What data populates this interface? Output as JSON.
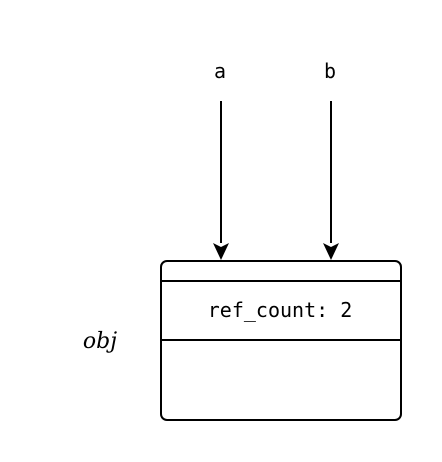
{
  "references": [
    {
      "name": "a"
    },
    {
      "name": "b"
    }
  ],
  "object": {
    "label": "obj",
    "field": "ref_count: 2"
  },
  "colors": {
    "line": "#000000",
    "background": "#ffffff"
  }
}
